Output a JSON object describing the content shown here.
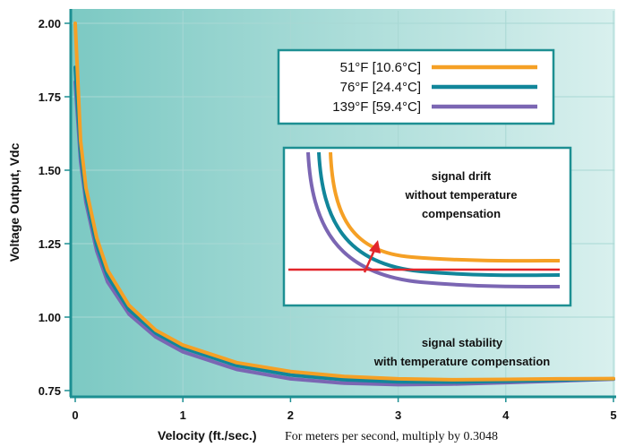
{
  "chart_data": {
    "type": "line",
    "xlabel": "Velocity (ft./sec.)",
    "xlabel_note": "For meters per second, multiply by 0.3048",
    "ylabel": "Voltage Output, Vdc",
    "xlim": [
      0,
      5
    ],
    "ylim": [
      0.75,
      2.0
    ],
    "xticks": [
      "0",
      "1",
      "2",
      "3",
      "4",
      "5"
    ],
    "yticks": [
      "0.75",
      "1.00",
      "1.25",
      "1.50",
      "1.75",
      "2.00"
    ],
    "grid": true,
    "legend_position": "top-right",
    "series": [
      {
        "name": "51°F [10.6°C]",
        "color": "#f5a025",
        "x": [
          0,
          0.05,
          0.1,
          0.2,
          0.3,
          0.5,
          0.75,
          1.0,
          1.5,
          2.0,
          2.5,
          3.0,
          3.5,
          4.0,
          4.5,
          5.0
        ],
        "y": [
          2.0,
          1.6,
          1.44,
          1.27,
          1.16,
          1.04,
          0.955,
          0.905,
          0.845,
          0.815,
          0.798,
          0.79,
          0.787,
          0.788,
          0.79,
          0.791
        ]
      },
      {
        "name": "76°F [24.4°C]",
        "color": "#11869a",
        "x": [
          0,
          0.05,
          0.1,
          0.2,
          0.3,
          0.5,
          0.75,
          1.0,
          1.5,
          2.0,
          2.5,
          3.0,
          3.5,
          4.0,
          4.5,
          5.0
        ],
        "y": [
          1.85,
          1.56,
          1.41,
          1.245,
          1.14,
          1.025,
          0.945,
          0.895,
          0.835,
          0.803,
          0.787,
          0.78,
          0.779,
          0.782,
          0.786,
          0.79
        ]
      },
      {
        "name": "139°F [59.4°C]",
        "color": "#7b66b3",
        "x": [
          0,
          0.05,
          0.1,
          0.2,
          0.3,
          0.5,
          0.75,
          1.0,
          1.5,
          2.0,
          2.5,
          3.0,
          3.5,
          4.0,
          4.5,
          5.0
        ],
        "y": [
          1.8,
          1.53,
          1.39,
          1.225,
          1.12,
          1.01,
          0.932,
          0.882,
          0.822,
          0.79,
          0.775,
          0.77,
          0.772,
          0.777,
          0.783,
          0.789
        ]
      }
    ],
    "annotations": {
      "stability_line1": "signal stability",
      "stability_line2": "with temperature compensation",
      "drift_line1": "signal drift",
      "drift_line2": "without temperature",
      "drift_line3": "compensation"
    },
    "inset": {
      "reference_line_color": "#e2262b",
      "arrow_color": "#e2262b"
    }
  },
  "colors": {
    "plot_bg_left": "#7cc9c3",
    "plot_bg_right": "#d9f0ee",
    "axis": "#1d8f92"
  }
}
